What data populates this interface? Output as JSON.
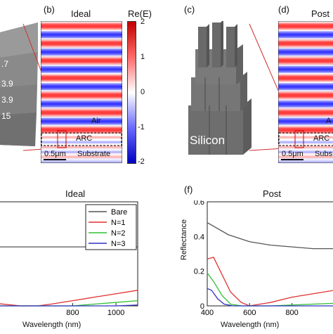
{
  "panels": {
    "b": {
      "tag": "(b)",
      "title": "Ideal",
      "colorbar_title": "Re(E)",
      "colorbar_ticks": [
        "2",
        "1",
        "0",
        "-1",
        "-2"
      ],
      "labels": {
        "air": "Air",
        "arc": "ARC",
        "substrate": "Substrate",
        "scale": "0.5μm"
      }
    },
    "c": {
      "tag": "(c)",
      "label": "Silicon"
    },
    "d": {
      "tag": "(d)",
      "title": "Post",
      "labels": {
        "air": "A",
        "arc": "ARC",
        "substrate": "Subs",
        "scale": "0.5μm"
      }
    },
    "a": {
      "layer_labels": [
        ".7",
        "3.9",
        "3.9",
        "15"
      ]
    },
    "e": {
      "title": "Ideal",
      "xlabel": "Wavelength (nm)"
    },
    "f": {
      "tag": "(f)",
      "title": "Post",
      "xlabel": "Wavelength (nm)",
      "ylabel": "Reflectance"
    }
  },
  "chart_data": [
    {
      "type": "line",
      "title": "Ideal",
      "xlabel": "Wavelength (nm)",
      "ylabel": "",
      "xlim": [
        400,
        1100
      ],
      "ylim": [
        0,
        0.6
      ],
      "x_ticks": [
        "800",
        "1000"
      ],
      "legend": [
        "Bare",
        "N=1",
        "N=2",
        "N=3"
      ],
      "colors": [
        "#555555",
        "#e03030",
        "#30c030",
        "#3030c0"
      ],
      "series": [
        {
          "name": "Bare",
          "x": [
            400,
            600,
            800,
            1000,
            1100
          ],
          "y": [
            0.34,
            0.34,
            0.34,
            0.34,
            0.34
          ]
        },
        {
          "name": "N=1",
          "x": [
            400,
            560,
            640,
            700,
            800,
            900,
            1000,
            1100
          ],
          "y": [
            0.02,
            0.0,
            0.0,
            0.01,
            0.03,
            0.05,
            0.07,
            0.09
          ]
        },
        {
          "name": "N=2",
          "x": [
            400,
            600,
            700,
            800,
            900,
            1000,
            1100
          ],
          "y": [
            0.0,
            0.0,
            0.0,
            0.0,
            0.01,
            0.02,
            0.03
          ]
        },
        {
          "name": "N=3",
          "x": [
            400,
            600,
            800,
            1000,
            1100
          ],
          "y": [
            0.0,
            0.0,
            0.0,
            0.0,
            0.005
          ]
        }
      ]
    },
    {
      "type": "line",
      "title": "Post",
      "xlabel": "Wavelength (nm)",
      "ylabel": "Reflectance",
      "xlim": [
        400,
        1100
      ],
      "ylim": [
        0,
        0.6
      ],
      "x_ticks": [
        "400",
        "600",
        "800"
      ],
      "y_ticks": [
        "0",
        "0.2",
        "0.4",
        "0.6"
      ],
      "colors": [
        "#555555",
        "#e03030",
        "#30c030",
        "#3030c0"
      ],
      "series": [
        {
          "name": "Bare",
          "x": [
            400,
            500,
            600,
            700,
            800,
            900,
            1000,
            1100
          ],
          "y": [
            0.48,
            0.41,
            0.37,
            0.35,
            0.34,
            0.33,
            0.33,
            0.33
          ]
        },
        {
          "name": "N=1",
          "x": [
            400,
            430,
            470,
            510,
            560,
            600,
            650,
            700,
            800,
            900,
            1000,
            1100
          ],
          "y": [
            0.27,
            0.28,
            0.18,
            0.08,
            0.02,
            0.0,
            0.01,
            0.02,
            0.05,
            0.07,
            0.09,
            0.11
          ]
        },
        {
          "name": "N=2",
          "x": [
            400,
            430,
            470,
            510,
            560,
            700,
            900,
            1100
          ],
          "y": [
            0.19,
            0.14,
            0.06,
            0.01,
            0.0,
            0.0,
            0.01,
            0.02
          ]
        },
        {
          "name": "N=3",
          "x": [
            400,
            420,
            450,
            480,
            520,
            600,
            800,
            1100
          ],
          "y": [
            0.1,
            0.09,
            0.04,
            0.01,
            0.0,
            0.0,
            0.0,
            0.0
          ]
        }
      ]
    }
  ]
}
